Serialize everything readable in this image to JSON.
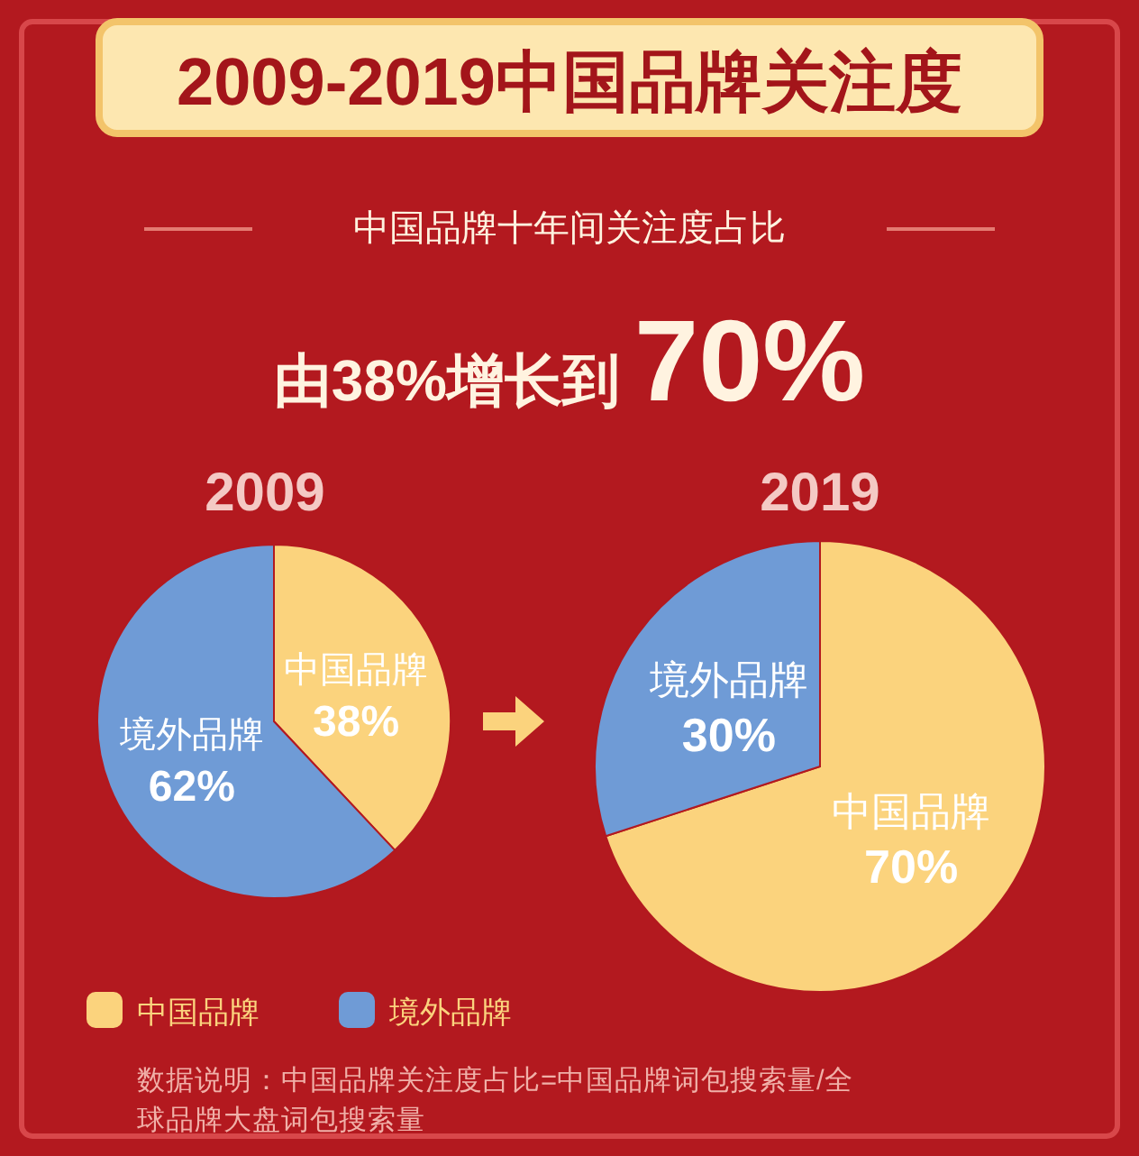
{
  "chart_data": [
    {
      "type": "other",
      "title": "2009-2019中国品牌关注度",
      "subtitle": "中国品牌十年间关注度占比",
      "annotations": [
        "由38%增长到70%"
      ]
    },
    {
      "type": "pie",
      "title": "2009",
      "categories": [
        "中国品牌",
        "境外品牌"
      ],
      "values": [
        38,
        62
      ],
      "value_labels": [
        "38%",
        "62%"
      ],
      "colors": [
        "#fbd37d",
        "#6f9bd6"
      ]
    },
    {
      "type": "pie",
      "title": "2019",
      "categories": [
        "中国品牌",
        "境外品牌"
      ],
      "values": [
        70,
        30
      ],
      "value_labels": [
        "70%",
        "30%"
      ],
      "colors": [
        "#fbd37d",
        "#6f9bd6"
      ],
      "legend": "bottom",
      "annotations": [
        "数据说明：中国品牌关注度占比=中国品牌词包搜索量/全球品牌大盘词包搜索量"
      ]
    }
  ]
}
